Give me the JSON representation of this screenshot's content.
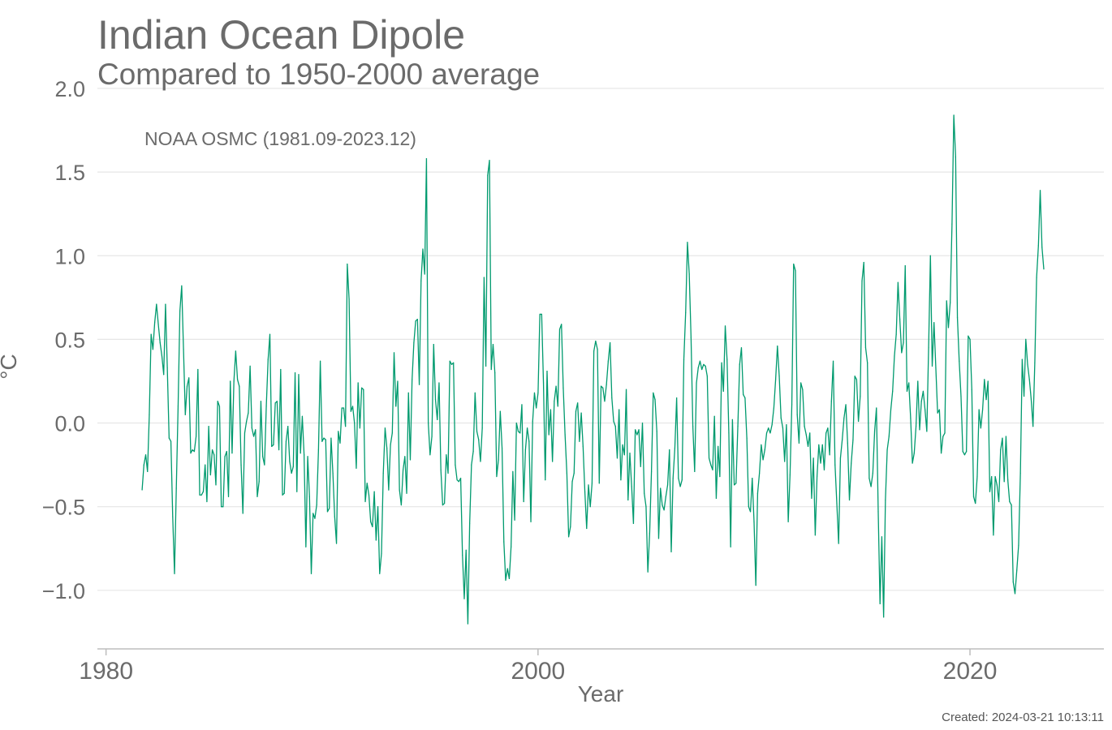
{
  "chart_data": {
    "type": "line",
    "title": "Indian Ocean Dipole",
    "subtitle": "Compared to 1950-2000 average",
    "xlabel": "Year",
    "ylabel": "°C",
    "xlim": [
      1979.6,
      2026.2
    ],
    "ylim": [
      -1.35,
      2.0
    ],
    "x_ticks": [
      1980,
      2000,
      2020
    ],
    "x_tick_labels": [
      "1980",
      "2000",
      "2020"
    ],
    "y_ticks": [
      -1.0,
      -0.5,
      0.0,
      0.5,
      1.0,
      1.5,
      2.0
    ],
    "y_tick_labels": [
      "−1.0",
      "−0.5",
      "0.0",
      "0.5",
      "1.0",
      "1.5",
      "2.0"
    ],
    "grid": "horizontal",
    "legend_placement": "top-left",
    "series": [
      {
        "name": "NOAA OSMC (1981.09-2023.12)",
        "color": "#009a6e",
        "x_start": 1981.67,
        "x_step": 0.08333,
        "values": [
          -0.4,
          -0.25,
          -0.19,
          -0.29,
          0.05,
          0.53,
          0.44,
          0.6,
          0.71,
          0.59,
          0.48,
          0.4,
          0.29,
          0.71,
          0.33,
          -0.09,
          -0.11,
          -0.56,
          -0.9,
          -0.39,
          0.1,
          0.67,
          0.82,
          0.44,
          0.05,
          0.22,
          0.27,
          -0.18,
          -0.16,
          -0.17,
          -0.08,
          0.32,
          -0.43,
          -0.43,
          -0.41,
          -0.25,
          -0.47,
          -0.02,
          -0.31,
          -0.16,
          -0.19,
          -0.37,
          0.13,
          0.1,
          -0.5,
          -0.5,
          -0.2,
          -0.17,
          -0.44,
          0.25,
          -0.18,
          0.25,
          0.43,
          0.26,
          0.22,
          -0.25,
          -0.54,
          -0.06,
          0.01,
          0.06,
          0.34,
          -0.03,
          -0.08,
          -0.04,
          -0.44,
          -0.35,
          0.13,
          -0.2,
          -0.25,
          0.1,
          0.38,
          0.53,
          -0.14,
          -0.13,
          0.12,
          0.13,
          -0.16,
          0.32,
          -0.43,
          -0.42,
          -0.11,
          -0.02,
          -0.23,
          -0.3,
          -0.26,
          0.3,
          -0.41,
          0.29,
          -0.18,
          0.04,
          -0.19,
          -0.74,
          -0.2,
          -0.44,
          -0.9,
          -0.54,
          -0.57,
          -0.49,
          -0.16,
          0.37,
          -0.11,
          -0.09,
          -0.1,
          -0.53,
          -0.51,
          -0.09,
          -0.3,
          -0.56,
          -0.72,
          -0.05,
          -0.12,
          0.09,
          0.09,
          -0.02,
          0.95,
          0.74,
          0.07,
          0.1,
          0.0,
          -0.27,
          0.24,
          -0.03,
          0.21,
          0.2,
          -0.47,
          -0.36,
          -0.43,
          -0.59,
          -0.62,
          -0.41,
          -0.7,
          -0.5,
          -0.9,
          -0.78,
          -0.3,
          -0.03,
          -0.15,
          -0.4,
          -0.13,
          -0.06,
          0.42,
          0.1,
          0.25,
          -0.4,
          -0.49,
          -0.28,
          -0.2,
          -0.42,
          0.18,
          -0.22,
          0.26,
          0.48,
          0.61,
          0.62,
          0.23,
          0.85,
          1.04,
          0.89,
          1.58,
          0.0,
          -0.19,
          -0.08,
          0.47,
          0.14,
          0.02,
          0.24,
          -0.28,
          -0.49,
          -0.48,
          -0.19,
          -0.3,
          0.37,
          0.35,
          0.36,
          -0.25,
          -0.34,
          -0.35,
          -0.33,
          -0.79,
          -1.05,
          -0.76,
          -1.2,
          -0.6,
          -0.25,
          -0.17,
          0.18,
          -0.05,
          -0.1,
          -0.23,
          -0.03,
          0.87,
          0.34,
          1.48,
          1.57,
          0.32,
          0.47,
          0.3,
          -0.32,
          -0.22,
          0.07,
          -0.15,
          -0.71,
          -0.94,
          -0.87,
          -0.93,
          -0.74,
          -0.29,
          -0.58,
          0.0,
          -0.05,
          -0.06,
          0.11,
          -0.47,
          -0.16,
          -0.03,
          -0.11,
          -0.59,
          0.01,
          0.18,
          0.09,
          0.18,
          0.65,
          0.65,
          0.24,
          -0.34,
          0.31,
          -0.07,
          0.08,
          -0.23,
          0.13,
          0.22,
          0.1,
          0.56,
          0.59,
          0.21,
          -0.07,
          -0.3,
          -0.68,
          -0.62,
          -0.35,
          -0.3,
          0.07,
          0.12,
          -0.11,
          0.06,
          -0.14,
          -0.41,
          -0.63,
          -0.37,
          -0.5,
          -0.36,
          0.43,
          0.49,
          0.44,
          -0.36,
          0.22,
          0.21,
          0.13,
          0.23,
          0.37,
          0.48,
          0.15,
          0.01,
          -0.02,
          -0.21,
          0.08,
          -0.34,
          -0.13,
          -0.19,
          0.2,
          -0.46,
          -0.18,
          -0.38,
          -0.6,
          -0.04,
          -0.07,
          -0.04,
          -0.26,
          0.0,
          -0.42,
          -0.5,
          -0.89,
          -0.66,
          -0.29,
          0.18,
          0.14,
          -0.05,
          -0.69,
          -0.39,
          -0.49,
          -0.52,
          -0.44,
          -0.37,
          -0.16,
          -0.77,
          -0.33,
          -0.15,
          0.15,
          -0.33,
          -0.38,
          -0.34,
          0.38,
          0.66,
          1.08,
          0.89,
          0.51,
          -0.02,
          -0.29,
          0.24,
          0.33,
          0.37,
          0.32,
          0.35,
          0.34,
          0.28,
          -0.21,
          -0.25,
          -0.28,
          0.04,
          -0.45,
          -0.14,
          -0.32,
          0.36,
          0.19,
          0.58,
          0.38,
          -0.06,
          -0.74,
          0.02,
          -0.37,
          -0.36,
          -0.02,
          0.35,
          0.45,
          0.17,
          0.15,
          -0.09,
          -0.5,
          -0.53,
          -0.33,
          -0.59,
          -0.97,
          -0.42,
          -0.3,
          -0.13,
          -0.22,
          -0.16,
          -0.06,
          -0.03,
          -0.06,
          -0.01,
          0.09,
          0.26,
          0.46,
          0.28,
          0.03,
          -0.03,
          -0.23,
          -0.01,
          -0.59,
          -0.31,
          0.11,
          0.95,
          0.91,
          0.05,
          -0.12,
          0.24,
          0.2,
          -0.02,
          -0.07,
          -0.14,
          -0.06,
          -0.45,
          -0.21,
          -0.67,
          -0.32,
          -0.13,
          -0.24,
          -0.13,
          -0.28,
          -0.06,
          -0.03,
          -0.19,
          0.13,
          0.37,
          -0.25,
          -0.48,
          -0.72,
          -0.21,
          -0.1,
          0.03,
          0.11,
          -0.12,
          -0.46,
          -0.24,
          -0.1,
          0.28,
          0.26,
          0.01,
          0.16,
          0.85,
          0.96,
          0.45,
          0.36,
          -0.33,
          -0.38,
          -0.3,
          -0.05,
          0.09,
          -0.53,
          -1.08,
          -0.68,
          -1.16,
          -0.46,
          -0.16,
          -0.08,
          0.08,
          0.19,
          0.4,
          0.53,
          0.84,
          0.62,
          0.42,
          0.48,
          0.94,
          0.19,
          0.24,
          0.03,
          -0.24,
          -0.18,
          -0.02,
          0.25,
          -0.04,
          0.13,
          0.19,
          0.08,
          -0.05,
          0.45,
          1.0,
          0.34,
          0.6,
          0.33,
          0.06,
          0.08,
          -0.18,
          -0.08,
          -0.06,
          0.73,
          0.57,
          0.72,
          1.19,
          1.84,
          1.59,
          0.63,
          0.37,
          0.16,
          -0.17,
          -0.19,
          -0.17,
          0.52,
          0.5,
          0.2,
          -0.44,
          -0.48,
          -0.32,
          0.08,
          -0.03,
          0.08,
          0.26,
          0.14,
          0.25,
          -0.41,
          -0.32,
          -0.67,
          -0.32,
          -0.37,
          -0.47,
          -0.16,
          -0.09,
          -0.35,
          -0.08,
          -0.34,
          -0.47,
          -0.49,
          -0.95,
          -1.02,
          -0.88,
          -0.73,
          -0.3,
          0.38,
          0.16,
          0.5,
          0.35,
          0.26,
          0.14,
          -0.02,
          0.36,
          0.87,
          1.06,
          1.39,
          1.05,
          0.92
        ]
      }
    ],
    "credit": "Created: 2024-03-21 10:13:11"
  }
}
